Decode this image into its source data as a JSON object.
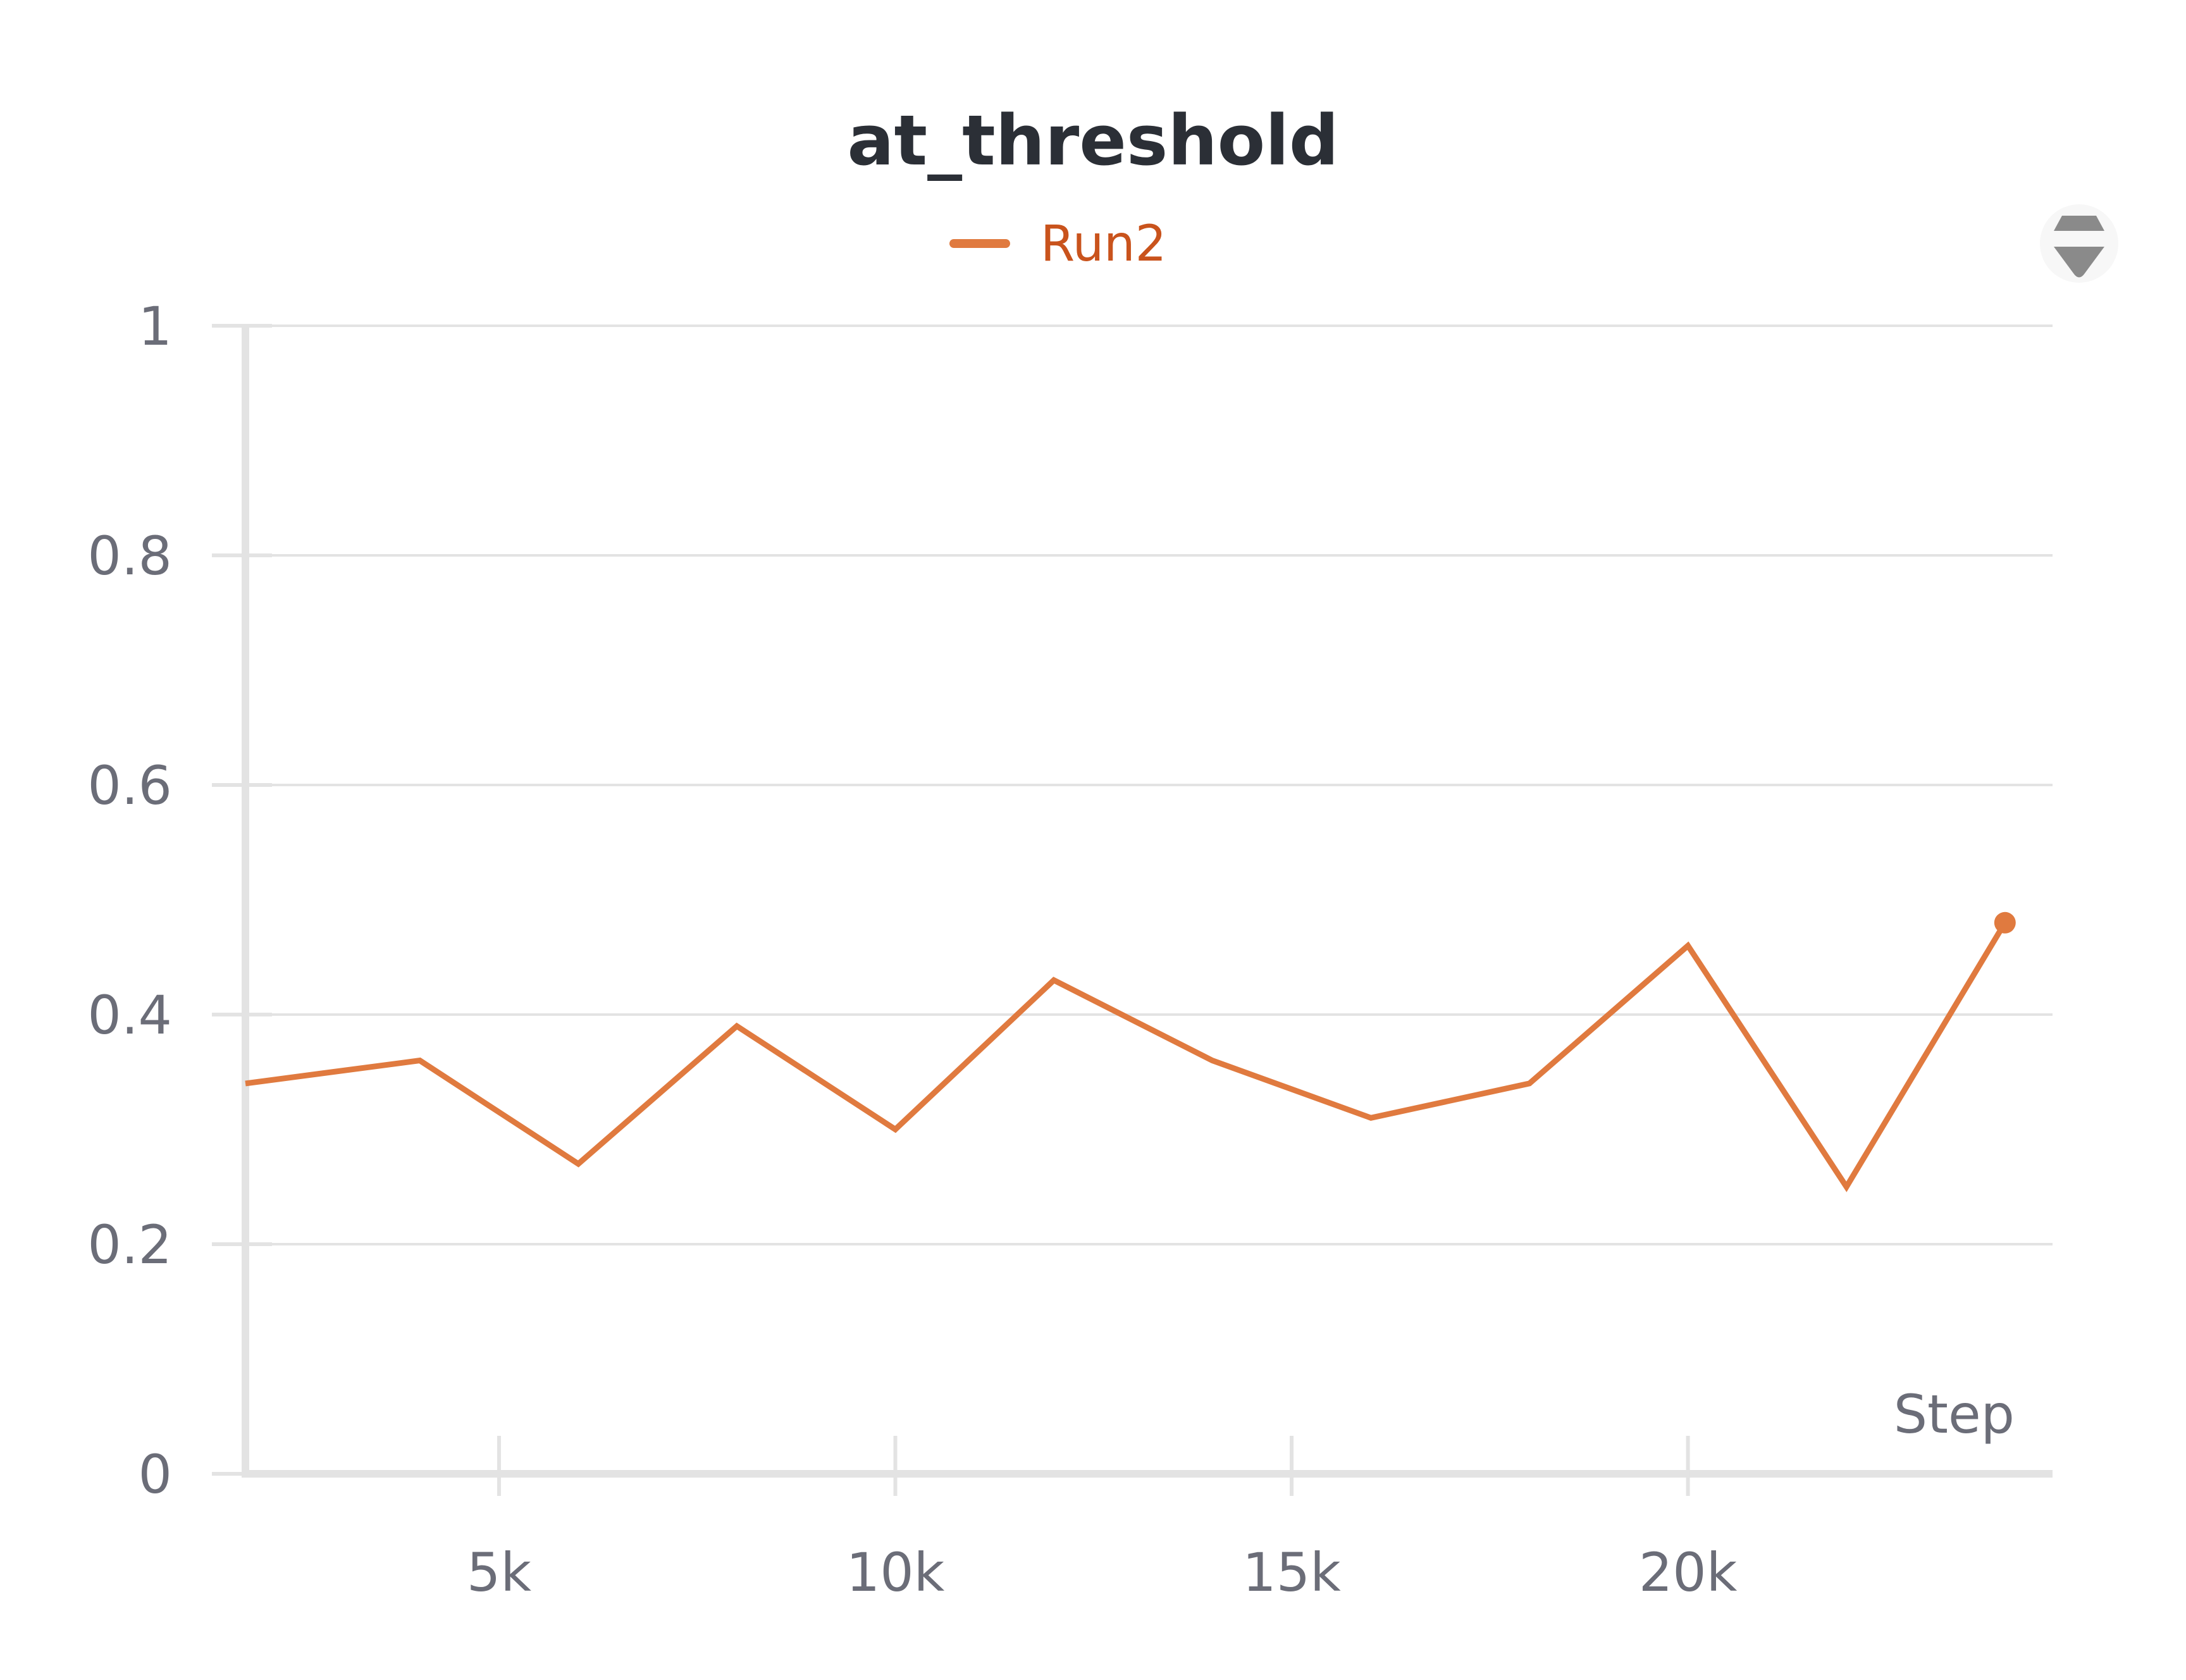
{
  "chart_data": {
    "type": "line",
    "title": "at_threshold",
    "xlabel": "Step",
    "ylabel": "",
    "xlim": [
      1800,
      24600
    ],
    "ylim": [
      0,
      1
    ],
    "x_ticks": [
      5000,
      10000,
      15000,
      20000
    ],
    "x_tick_labels": [
      "5k",
      "10k",
      "15k",
      "20k"
    ],
    "y_ticks": [
      0,
      0.2,
      0.4,
      0.6,
      0.8,
      1
    ],
    "y_tick_labels": [
      "0",
      "0.2",
      "0.4",
      "0.6",
      "0.8",
      "1"
    ],
    "grid": true,
    "legend_position": "top-center",
    "series": [
      {
        "name": "Run2",
        "color": "#e07a3f",
        "label_color": "#c9531c",
        "x": [
          2000,
          4000,
          6000,
          8000,
          10000,
          12000,
          14000,
          16000,
          18000,
          20000,
          22000,
          24000
        ],
        "y": [
          0.34,
          0.36,
          0.27,
          0.39,
          0.3,
          0.43,
          0.36,
          0.31,
          0.34,
          0.46,
          0.25,
          0.48
        ]
      }
    ]
  },
  "controls": {
    "sort_icon": "sort-arrows-icon"
  }
}
